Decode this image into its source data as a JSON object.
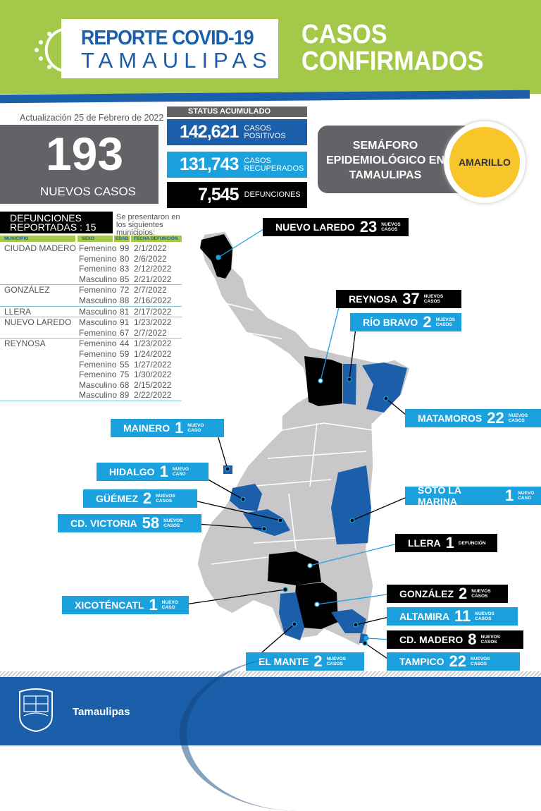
{
  "header": {
    "title_line1": "REPORTE COVID-19",
    "title_line2": "TAMAULIPAS",
    "subtitle": "CASOS CONFIRMADOS"
  },
  "update": "Actualización 25 de Febrero de 2022",
  "nuevos": {
    "value": "193",
    "label": "NUEVOS CASOS"
  },
  "status": {
    "title": "STATUS ACUMULADO",
    "positivos": {
      "value": "142,621",
      "label": "CASOS POSITIVOS"
    },
    "recuperados": {
      "value": "131,743",
      "label": "CASOS RECUPERADOS"
    },
    "defunciones": {
      "value": "7,545",
      "label": "DEFUNCIONES"
    }
  },
  "semaforo": {
    "label": "SEMÁFORO EPIDEMIOLÓGICO EN TAMAULIPAS",
    "level": "AMARILLO",
    "color": "#f8c52a"
  },
  "defunciones": {
    "title_line1": "DEFUNCIONES",
    "title_line2": "REPORTADAS : 15",
    "note": "Se presentaron en los siguientes municipios:",
    "columns": [
      "MUNICIPIO",
      "SEXO",
      "EDAD",
      "FECHA DEFUNCIÓN"
    ],
    "groups": [
      {
        "municipio": "CIUDAD MADERO",
        "rows": [
          [
            "Femenino",
            "99",
            "2/1/2022"
          ],
          [
            "Femenino",
            "80",
            "2/6/2022"
          ],
          [
            "Femenino",
            "83",
            "2/12/2022"
          ],
          [
            "Masculino",
            "85",
            "2/21/2022"
          ]
        ]
      },
      {
        "municipio": "GONZÁLEZ",
        "rows": [
          [
            "Femenino",
            "72",
            "2/7/2022"
          ],
          [
            "Masculino",
            "88",
            "2/16/2022"
          ]
        ]
      },
      {
        "municipio": "LLERA",
        "rows": [
          [
            "Masculino",
            "81",
            "2/17/2022"
          ]
        ]
      },
      {
        "municipio": "NUEVO LAREDO",
        "rows": [
          [
            "Masculino",
            "91",
            "1/23/2022"
          ],
          [
            "Femenino",
            "67",
            "2/7/2022"
          ]
        ]
      },
      {
        "municipio": "REYNOSA",
        "rows": [
          [
            "Femenino",
            "44",
            "1/23/2022"
          ],
          [
            "Femenino",
            "59",
            "1/24/2022"
          ],
          [
            "Femenino",
            "55",
            "1/27/2022"
          ],
          [
            "Femenino",
            "75",
            "1/30/2022"
          ],
          [
            "Masculino",
            "68",
            "2/15/2022"
          ],
          [
            "Masculino",
            "89",
            "2/22/2022"
          ]
        ]
      }
    ]
  },
  "map_labels": [
    {
      "name": "NUEVO LAREDO",
      "count": "23",
      "note": "NUEVOS CASOS",
      "style": "dark"
    },
    {
      "name": "REYNOSA",
      "count": "37",
      "note": "NUEVOS CASOS",
      "style": "dark"
    },
    {
      "name": "RÍO BRAVO",
      "count": "2",
      "note": "NUEVOS CASOS",
      "style": "blue"
    },
    {
      "name": "MATAMOROS",
      "count": "22",
      "note": "NUEVOS CASOS",
      "style": "blue"
    },
    {
      "name": "MAINERO",
      "count": "1",
      "note": "NUEVO CASO",
      "style": "blue"
    },
    {
      "name": "HIDALGO",
      "count": "1",
      "note": "NUEVO CASO",
      "style": "blue"
    },
    {
      "name": "GÜÉMEZ",
      "count": "2",
      "note": "NUEVOS CASOS",
      "style": "blue"
    },
    {
      "name": "CD. VICTORIA",
      "count": "58",
      "note": "NUEVOS CASOS",
      "style": "blue"
    },
    {
      "name": "SOTO LA MARINA",
      "count": "1",
      "note": "NUEVO CASO",
      "style": "blue"
    },
    {
      "name": "LLERA",
      "count": "1",
      "note": "DEFUNCIÓN",
      "style": "dark"
    },
    {
      "name": "XICOTÉNCATL",
      "count": "1",
      "note": "NUEVO CASO",
      "style": "blue"
    },
    {
      "name": "GONZÁLEZ",
      "count": "2",
      "note": "NUEVOS CASOS",
      "style": "dark"
    },
    {
      "name": "ALTAMIRA",
      "count": "11",
      "note": "NUEVOS CASOS",
      "style": "blue"
    },
    {
      "name": "CD. MADERO",
      "count": "8",
      "note": "NUEVOS CASOS",
      "style": "dark"
    },
    {
      "name": "TAMPICO",
      "count": "22",
      "note": "NUEVOS CASOS",
      "style": "blue"
    },
    {
      "name": "EL MANTE",
      "count": "2",
      "note": "NUEVOS CASOS",
      "style": "blue"
    }
  ],
  "colors": {
    "green": "#a4c94a",
    "blue": "#1b5ea9",
    "light_blue": "#1ba1de",
    "gray": "#626366"
  },
  "footer": {
    "brand": "Tamaulipas"
  }
}
